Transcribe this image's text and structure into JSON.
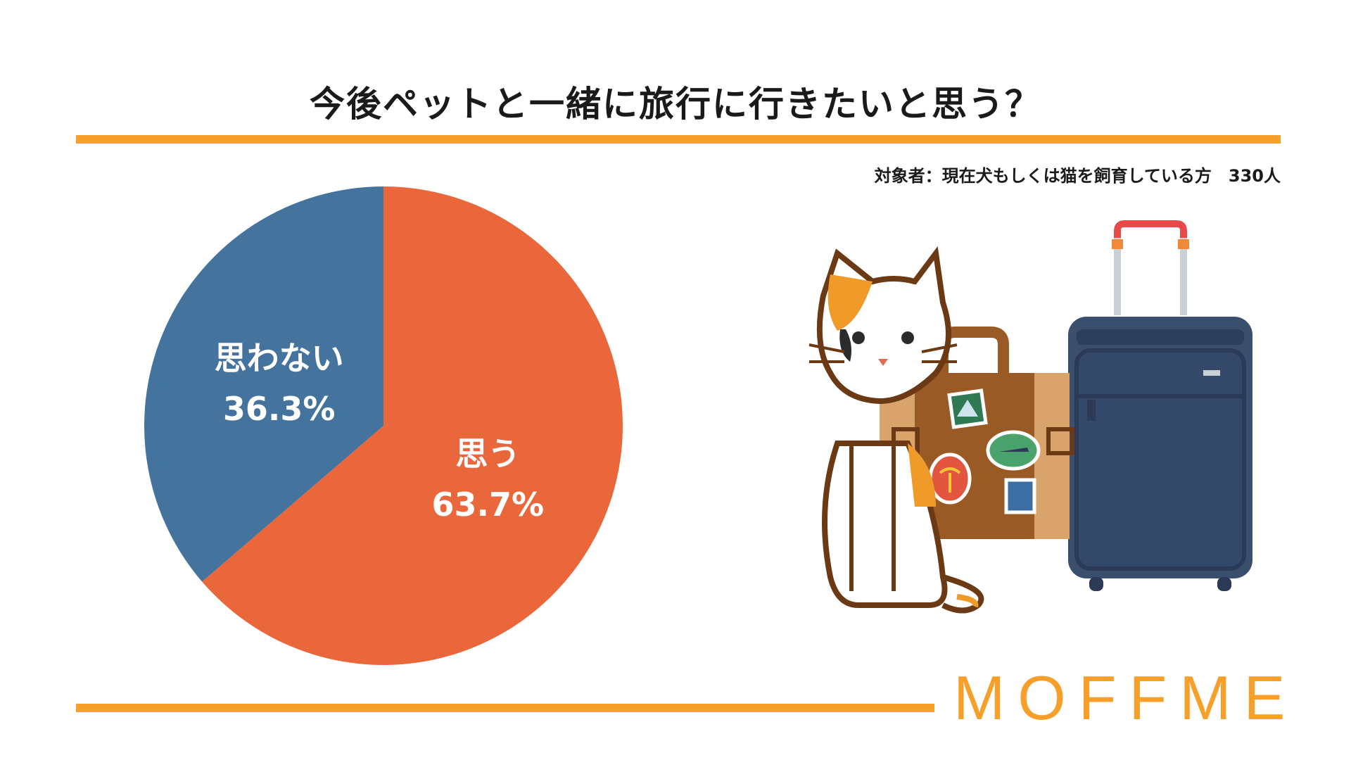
{
  "title": "今後ペットと一緒に旅行に行きたいと思う？",
  "subtitle": "対象者：現在犬もしくは猫を飼育している方　330人",
  "brand": "MOFFME",
  "colors": {
    "accent": "#f6a02b",
    "yes": "#ea673b",
    "no": "#44739e"
  },
  "chart_data": {
    "type": "pie",
    "slices": [
      {
        "label": "思う",
        "value": 63.7,
        "value_label": "63.7%",
        "color": "#ea673b"
      },
      {
        "label": "思わない",
        "value": 36.3,
        "value_label": "36.3%",
        "color": "#44739e"
      }
    ]
  },
  "illustration": {
    "items": [
      "cat-icon",
      "suitcase-icon",
      "rolling-luggage-icon"
    ]
  }
}
